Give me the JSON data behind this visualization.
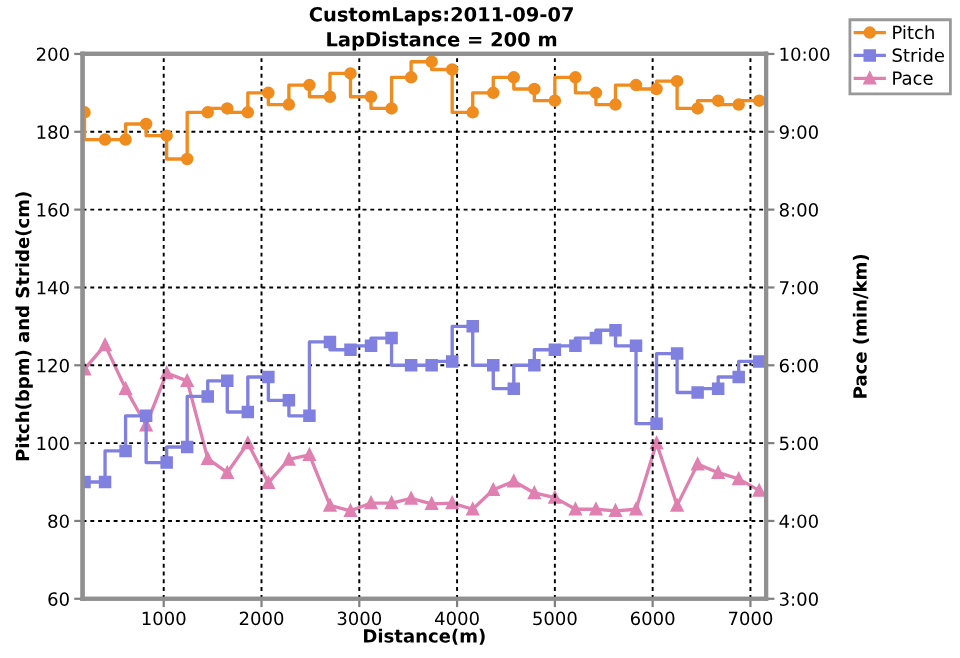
{
  "chart_data": {
    "type": "step",
    "title": "CustomLaps:2011-09-07",
    "subtitle": "LapDistance = 200 m",
    "xlabel": "Distance(m)",
    "ylabel": "Pitch(bpm) and Stride(cm)",
    "y2label": "Pace (min/km)",
    "x": [
      190,
      400,
      610,
      820,
      1030,
      1240,
      1450,
      1650,
      1860,
      2070,
      2280,
      2490,
      2700,
      2910,
      3120,
      3330,
      3530,
      3740,
      3950,
      4160,
      4370,
      4580,
      4790,
      5000,
      5210,
      5420,
      5620,
      5830,
      6040,
      6250,
      6460,
      6670,
      6880,
      7090
    ],
    "series": [
      {
        "name": "Pitch",
        "marker": "circle",
        "color": "#f08c1e",
        "values": [
          185,
          178,
          178,
          182,
          179,
          173,
          185,
          186,
          185,
          190,
          187,
          192,
          189,
          195,
          189,
          186,
          194,
          198,
          196,
          185,
          190,
          194,
          191,
          188,
          194,
          190,
          187,
          192,
          191,
          193,
          186,
          188,
          187,
          188
        ]
      },
      {
        "name": "Stride",
        "marker": "square",
        "color": "#8080e0",
        "values": [
          90,
          90,
          98,
          107,
          95,
          99,
          112,
          116,
          108,
          117,
          111,
          107,
          126,
          124,
          125,
          127,
          120,
          120,
          121,
          130,
          120,
          114,
          120,
          124,
          125,
          127,
          129,
          125,
          105,
          123,
          113,
          114,
          117,
          121
        ]
      },
      {
        "name": "Pace",
        "type": "line",
        "marker": "triangle",
        "axis": "y2",
        "color": "#e080b0",
        "values": [
          5.95,
          6.26,
          5.7,
          5.23,
          5.9,
          5.8,
          4.8,
          4.62,
          5.0,
          4.49,
          4.79,
          4.85,
          4.2,
          4.13,
          4.23,
          4.23,
          4.29,
          4.22,
          4.23,
          4.15,
          4.4,
          4.51,
          4.36,
          4.3,
          4.15,
          4.15,
          4.13,
          4.15,
          5.0,
          4.2,
          4.73,
          4.62,
          4.54,
          4.39
        ]
      }
    ],
    "xlim": [
      170,
      7160
    ],
    "xticks": [
      1000,
      2000,
      3000,
      4000,
      5000,
      6000,
      7000
    ],
    "ylim": [
      60,
      200
    ],
    "yticks": [
      60,
      80,
      100,
      120,
      140,
      160,
      180,
      200
    ],
    "y2lim": [
      3,
      10
    ],
    "y2ticks": [
      {
        "value": 3,
        "label": "3:00"
      },
      {
        "value": 4,
        "label": "4:00"
      },
      {
        "value": 5,
        "label": "5:00"
      },
      {
        "value": 6,
        "label": "6:00"
      },
      {
        "value": 7,
        "label": "7:00"
      },
      {
        "value": 8,
        "label": "8:00"
      },
      {
        "value": 9,
        "label": "9:00"
      },
      {
        "value": 10,
        "label": "10:00"
      }
    ],
    "grid": true,
    "legend": "top right",
    "line_style": "solid"
  }
}
